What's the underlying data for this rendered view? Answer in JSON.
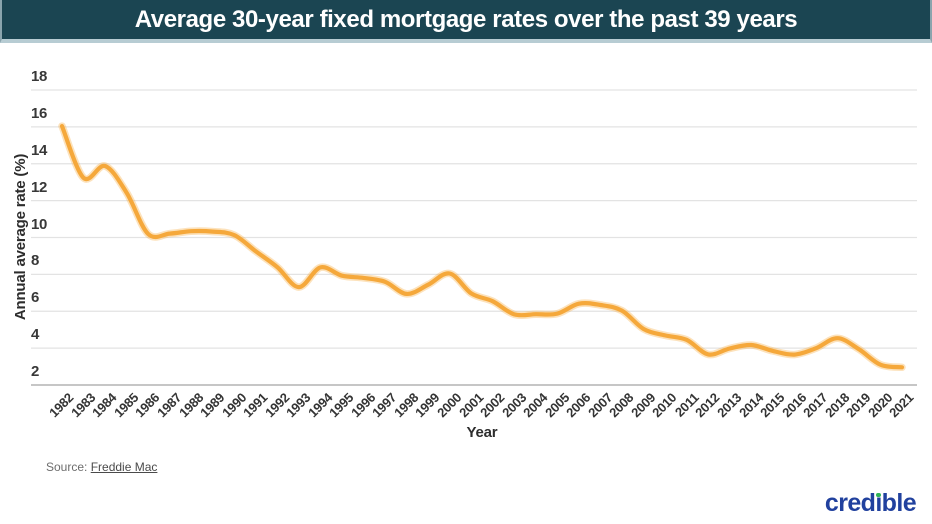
{
  "header": {
    "title": "Average 30-year fixed mortgage rates over the past 39 years",
    "background_color": "#1b4552",
    "bottom_strip_color": "#b7ccd3",
    "text_color": "#ffffff"
  },
  "chart_data": {
    "type": "line",
    "title": "Average 30-year fixed mortgage rates over the past 39 years",
    "xlabel": "Year",
    "ylabel": "Annual average rate (%)",
    "x": [
      1982,
      1983,
      1984,
      1985,
      1986,
      1987,
      1988,
      1989,
      1990,
      1991,
      1992,
      1993,
      1994,
      1995,
      1996,
      1997,
      1998,
      1999,
      2000,
      2001,
      2002,
      2003,
      2004,
      2005,
      2006,
      2007,
      2008,
      2009,
      2010,
      2011,
      2012,
      2013,
      2014,
      2015,
      2016,
      2017,
      2018,
      2019,
      2020,
      2021
    ],
    "series": [
      {
        "name": "Average 30-year fixed mortgage rate",
        "values": [
          16.04,
          13.24,
          13.88,
          12.43,
          10.19,
          10.21,
          10.34,
          10.32,
          10.13,
          9.25,
          8.39,
          7.31,
          8.38,
          7.93,
          7.81,
          7.6,
          6.94,
          7.44,
          8.05,
          6.97,
          6.54,
          5.83,
          5.84,
          5.87,
          6.41,
          6.34,
          6.03,
          5.04,
          4.69,
          4.45,
          3.66,
          3.98,
          4.17,
          3.85,
          3.65,
          3.99,
          4.54,
          3.94,
          3.1,
          2.96
        ]
      }
    ],
    "ylim": [
      2,
      18
    ],
    "yticks": [
      2,
      4,
      6,
      8,
      10,
      12,
      14,
      16,
      18
    ],
    "grid": "horizontal",
    "legend": "none",
    "smoothing": "spline",
    "line_color": "#f5a83b",
    "line_halo_color": "rgba(246,172,64,0.35)",
    "gridline_color": "#e3e3e3",
    "axis_line_color": "#c6c6c6"
  },
  "footer": {
    "source_label": "Source:",
    "source_link": "Freddie Mac",
    "logo_text": "credible",
    "logo_color": "#21419e",
    "logo_dot_color": "#2fb457"
  }
}
